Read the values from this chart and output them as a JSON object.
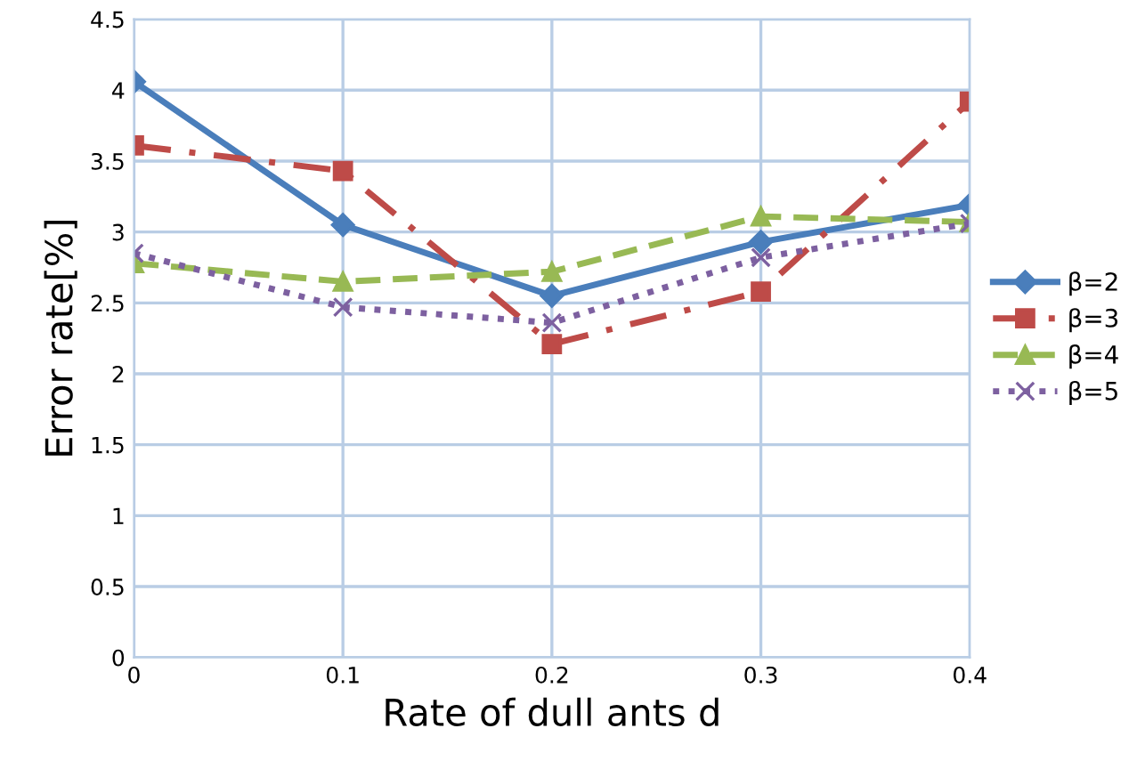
{
  "chart_data": {
    "type": "line",
    "xlabel": "Rate of dull ants d",
    "ylabel": "Error rate[%]",
    "x": [
      0,
      0.1,
      0.2,
      0.3,
      0.4
    ],
    "xlim": [
      0,
      0.4
    ],
    "xticks": [
      0,
      0.1,
      0.2,
      0.3,
      0.4
    ],
    "ylim": [
      0,
      4.5
    ],
    "yticks": [
      0,
      0.5,
      1,
      1.5,
      2,
      2.5,
      3,
      3.5,
      4,
      4.5
    ],
    "grid": true,
    "legend": "right",
    "series": [
      {
        "name": "β=2",
        "color": "#4a7ebb",
        "values": [
          4.06,
          3.05,
          2.55,
          2.93,
          3.19
        ],
        "marker": "diamond",
        "line_style": "solid"
      },
      {
        "name": "β=3",
        "color": "#be4b48",
        "values": [
          3.61,
          3.43,
          2.21,
          2.58,
          3.92
        ],
        "marker": "square",
        "line_style": "dashdot"
      },
      {
        "name": "β=4",
        "color": "#98b954",
        "values": [
          2.78,
          2.65,
          2.72,
          3.11,
          3.07
        ],
        "marker": "triangle",
        "line_style": "dashed"
      },
      {
        "name": "β=5",
        "color": "#7d60a0",
        "values": [
          2.85,
          2.47,
          2.36,
          2.82,
          3.06
        ],
        "marker": "cross",
        "line_style": "dotted"
      }
    ]
  }
}
